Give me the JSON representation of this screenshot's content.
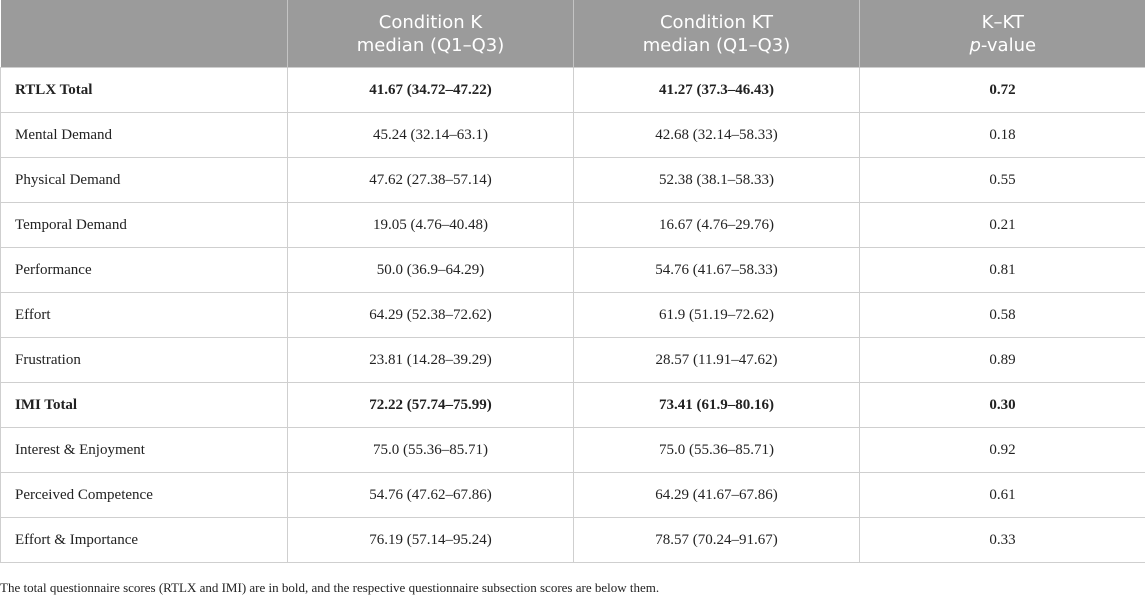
{
  "table": {
    "headers": [
      {
        "line1": "",
        "line2": ""
      },
      {
        "line1": "Condition K",
        "line2": "median (Q1–Q3)"
      },
      {
        "line1": "Condition KT",
        "line2": "median (Q1–Q3)"
      },
      {
        "line1": "K–KT",
        "line2_italic": "p",
        "line2_rest": "-value"
      }
    ],
    "rows": [
      {
        "label": "RTLX Total",
        "k": "41.67 (34.72–47.22)",
        "kt": "41.27 (37.3–46.43)",
        "p": "0.72",
        "bold": true
      },
      {
        "label": "Mental Demand",
        "k": "45.24 (32.14–63.1)",
        "kt": "42.68 (32.14–58.33)",
        "p": "0.18",
        "bold": false
      },
      {
        "label": "Physical Demand",
        "k": "47.62 (27.38–57.14)",
        "kt": "52.38 (38.1–58.33)",
        "p": "0.55",
        "bold": false
      },
      {
        "label": "Temporal Demand",
        "k": "19.05 (4.76–40.48)",
        "kt": "16.67 (4.76–29.76)",
        "p": "0.21",
        "bold": false
      },
      {
        "label": "Performance",
        "k": "50.0 (36.9–64.29)",
        "kt": "54.76 (41.67–58.33)",
        "p": "0.81",
        "bold": false
      },
      {
        "label": "Effort",
        "k": "64.29 (52.38–72.62)",
        "kt": "61.9 (51.19–72.62)",
        "p": "0.58",
        "bold": false
      },
      {
        "label": "Frustration",
        "k": "23.81 (14.28–39.29)",
        "kt": "28.57 (11.91–47.62)",
        "p": "0.89",
        "bold": false
      },
      {
        "label": "IMI Total",
        "k": "72.22 (57.74–75.99)",
        "kt": "73.41 (61.9–80.16)",
        "p": "0.30",
        "bold": true
      },
      {
        "label": "Interest & Enjoyment",
        "k": "75.0 (55.36–85.71)",
        "kt": "75.0 (55.36–85.71)",
        "p": "0.92",
        "bold": false
      },
      {
        "label": "Perceived Competence",
        "k": "54.76 (47.62–67.86)",
        "kt": "64.29 (41.67–67.86)",
        "p": "0.61",
        "bold": false
      },
      {
        "label": "Effort & Importance",
        "k": "76.19 (57.14–95.24)",
        "kt": "78.57 (70.24–91.67)",
        "p": "0.33",
        "bold": false
      }
    ]
  },
  "footnote": "The total questionnaire scores (RTLX and IMI) are in bold, and the respective questionnaire subsection scores are below them.",
  "colors": {
    "header_bg": "#9b9b9b",
    "header_text": "#ffffff",
    "grid_line": "#cfcfcf"
  }
}
